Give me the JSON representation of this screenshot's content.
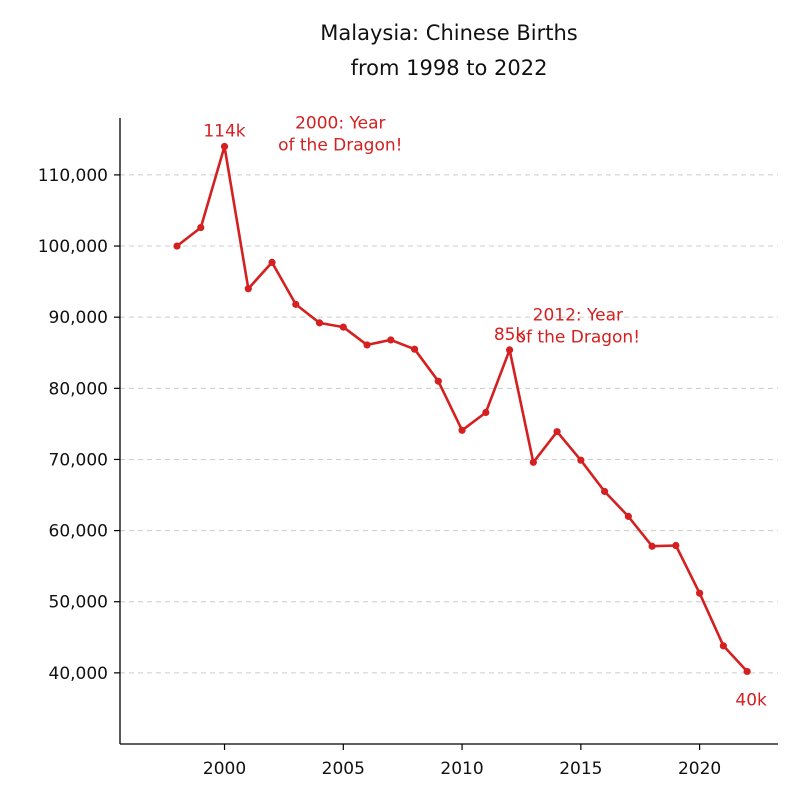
{
  "chart_data": {
    "type": "line",
    "title_lines": [
      "Malaysia: Chinese Births",
      "from 1998 to 2022"
    ],
    "xlabel": "",
    "ylabel": "",
    "x": [
      1998,
      1999,
      2000,
      2001,
      2002,
      2003,
      2004,
      2005,
      2006,
      2007,
      2008,
      2009,
      2010,
      2011,
      2012,
      2013,
      2014,
      2015,
      2016,
      2017,
      2018,
      2019,
      2020,
      2021,
      2022
    ],
    "series": [
      {
        "name": "Chinese births",
        "color": "#d42020",
        "values": [
          100000,
          102600,
          114000,
          94000,
          97700,
          91800,
          89200,
          88600,
          86100,
          86800,
          85500,
          81000,
          74100,
          76600,
          85400,
          69600,
          73900,
          69900,
          65500,
          62000,
          57800,
          57900,
          51200,
          43800,
          40200
        ]
      }
    ],
    "xlim": [
      1995.6,
      2023.3
    ],
    "ylim": [
      30000,
      118000
    ],
    "xticks": [
      2000,
      2005,
      2010,
      2015,
      2020
    ],
    "xtick_labels": [
      "2000",
      "2005",
      "2010",
      "2015",
      "2020"
    ],
    "yticks": [
      40000,
      50000,
      60000,
      70000,
      80000,
      90000,
      100000,
      110000
    ],
    "ytick_labels": [
      "40,000",
      "50,000",
      "60,000",
      "70,000",
      "80,000",
      "90,000",
      "100,000",
      "110,000"
    ],
    "grid": "horizontal dashed",
    "annotations": [
      {
        "label": "114k",
        "x": 2000,
        "y": 114000
      },
      {
        "label": "85k",
        "x": 2012,
        "y": 85400
      },
      {
        "label": "40k",
        "x": 2022,
        "y": 40200
      }
    ],
    "notes": [
      {
        "lines": [
          "2000: Year",
          "of the Dragon!"
        ],
        "x": 2005,
        "y": 116500
      },
      {
        "lines": [
          "2012: Year",
          "of the Dragon!"
        ],
        "x": 2015,
        "y": 89500
      }
    ]
  }
}
